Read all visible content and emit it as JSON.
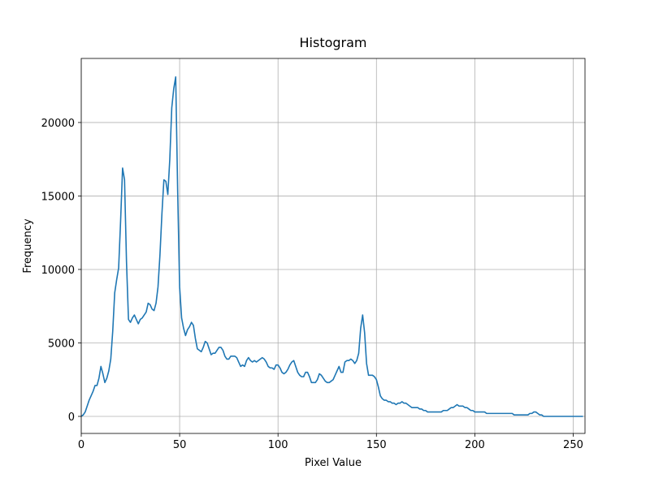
{
  "chart_data": {
    "type": "line",
    "title": "Histogram",
    "x_label": "Pixel Value",
    "y_label": "Frequency",
    "color": "#1f77b4",
    "grid": true,
    "xlim": [
      0,
      256
    ],
    "ylim": [
      -1160,
      24360
    ],
    "xticks": [
      0,
      50,
      100,
      150,
      200,
      250
    ],
    "yticks": [
      0,
      5000,
      10000,
      15000,
      20000
    ],
    "x": [
      0,
      1,
      2,
      3,
      4,
      5,
      6,
      7,
      8,
      9,
      10,
      11,
      12,
      13,
      14,
      15,
      16,
      17,
      18,
      19,
      20,
      21,
      22,
      23,
      24,
      25,
      26,
      27,
      28,
      29,
      30,
      31,
      32,
      33,
      34,
      35,
      36,
      37,
      38,
      39,
      40,
      41,
      42,
      43,
      44,
      45,
      46,
      47,
      48,
      49,
      50,
      51,
      52,
      53,
      54,
      55,
      56,
      57,
      58,
      59,
      60,
      61,
      62,
      63,
      64,
      65,
      66,
      67,
      68,
      69,
      70,
      71,
      72,
      73,
      74,
      75,
      76,
      77,
      78,
      79,
      80,
      81,
      82,
      83,
      84,
      85,
      86,
      87,
      88,
      89,
      90,
      91,
      92,
      93,
      94,
      95,
      96,
      97,
      98,
      99,
      100,
      101,
      102,
      103,
      104,
      105,
      106,
      107,
      108,
      109,
      110,
      111,
      112,
      113,
      114,
      115,
      116,
      117,
      118,
      119,
      120,
      121,
      122,
      123,
      124,
      125,
      126,
      127,
      128,
      129,
      130,
      131,
      132,
      133,
      134,
      135,
      136,
      137,
      138,
      139,
      140,
      141,
      142,
      143,
      144,
      145,
      146,
      147,
      148,
      149,
      150,
      151,
      152,
      153,
      154,
      155,
      156,
      157,
      158,
      159,
      160,
      161,
      162,
      163,
      164,
      165,
      166,
      167,
      168,
      169,
      170,
      171,
      172,
      173,
      174,
      175,
      176,
      177,
      178,
      179,
      180,
      181,
      182,
      183,
      184,
      185,
      186,
      187,
      188,
      189,
      190,
      191,
      192,
      193,
      194,
      195,
      196,
      197,
      198,
      199,
      200,
      201,
      202,
      203,
      204,
      205,
      206,
      207,
      208,
      209,
      210,
      211,
      212,
      213,
      214,
      215,
      216,
      217,
      218,
      219,
      220,
      221,
      222,
      223,
      224,
      225,
      226,
      227,
      228,
      229,
      230,
      231,
      232,
      233,
      234,
      235,
      236,
      237,
      238,
      239,
      240,
      241,
      242,
      243,
      244,
      245,
      246,
      247,
      248,
      249,
      250,
      251,
      252,
      253,
      254,
      255
    ],
    "values": [
      0,
      100,
      300,
      700,
      1100,
      1400,
      1700,
      2100,
      2100,
      2600,
      3400,
      2900,
      2300,
      2600,
      3100,
      3900,
      5800,
      8400,
      9300,
      10100,
      13300,
      16900,
      16100,
      10500,
      6600,
      6400,
      6700,
      6900,
      6600,
      6300,
      6600,
      6700,
      6900,
      7100,
      7700,
      7600,
      7300,
      7200,
      7700,
      8800,
      11000,
      13800,
      16100,
      16000,
      15100,
      17500,
      21000,
      22300,
      23100,
      15300,
      8800,
      6700,
      6000,
      5500,
      5900,
      6100,
      6400,
      6200,
      5300,
      4600,
      4500,
      4400,
      4700,
      5100,
      5000,
      4600,
      4200,
      4300,
      4300,
      4500,
      4700,
      4700,
      4500,
      4100,
      3900,
      3900,
      4100,
      4100,
      4100,
      4000,
      3700,
      3400,
      3500,
      3400,
      3800,
      4000,
      3800,
      3700,
      3800,
      3700,
      3800,
      3900,
      4000,
      3900,
      3700,
      3400,
      3300,
      3300,
      3200,
      3500,
      3500,
      3300,
      3000,
      2900,
      3000,
      3200,
      3500,
      3700,
      3800,
      3400,
      3000,
      2800,
      2700,
      2700,
      3000,
      3000,
      2700,
      2300,
      2300,
      2300,
      2500,
      2900,
      2800,
      2600,
      2400,
      2300,
      2300,
      2400,
      2500,
      2800,
      3100,
      3400,
      3000,
      3000,
      3700,
      3800,
      3800,
      3900,
      3800,
      3600,
      3800,
      4300,
      6000,
      6900,
      5700,
      3600,
      2800,
      2800,
      2800,
      2700,
      2500,
      2000,
      1400,
      1200,
      1100,
      1100,
      1000,
      1000,
      900,
      900,
      800,
      900,
      900,
      1000,
      900,
      900,
      800,
      700,
      600,
      600,
      600,
      600,
      500,
      500,
      400,
      400,
      300,
      300,
      300,
      300,
      300,
      300,
      300,
      300,
      400,
      400,
      400,
      500,
      600,
      600,
      700,
      800,
      700,
      700,
      700,
      600,
      600,
      500,
      400,
      400,
      300,
      300,
      300,
      300,
      300,
      300,
      200,
      200,
      200,
      200,
      200,
      200,
      200,
      200,
      200,
      200,
      200,
      200,
      200,
      200,
      100,
      100,
      100,
      100,
      100,
      100,
      100,
      100,
      200,
      200,
      300,
      300,
      200,
      100,
      100,
      0,
      0,
      0,
      0,
      0,
      0,
      0,
      0,
      0,
      0,
      0,
      0,
      0,
      0,
      0,
      0,
      0,
      0,
      0,
      0,
      0
    ]
  }
}
